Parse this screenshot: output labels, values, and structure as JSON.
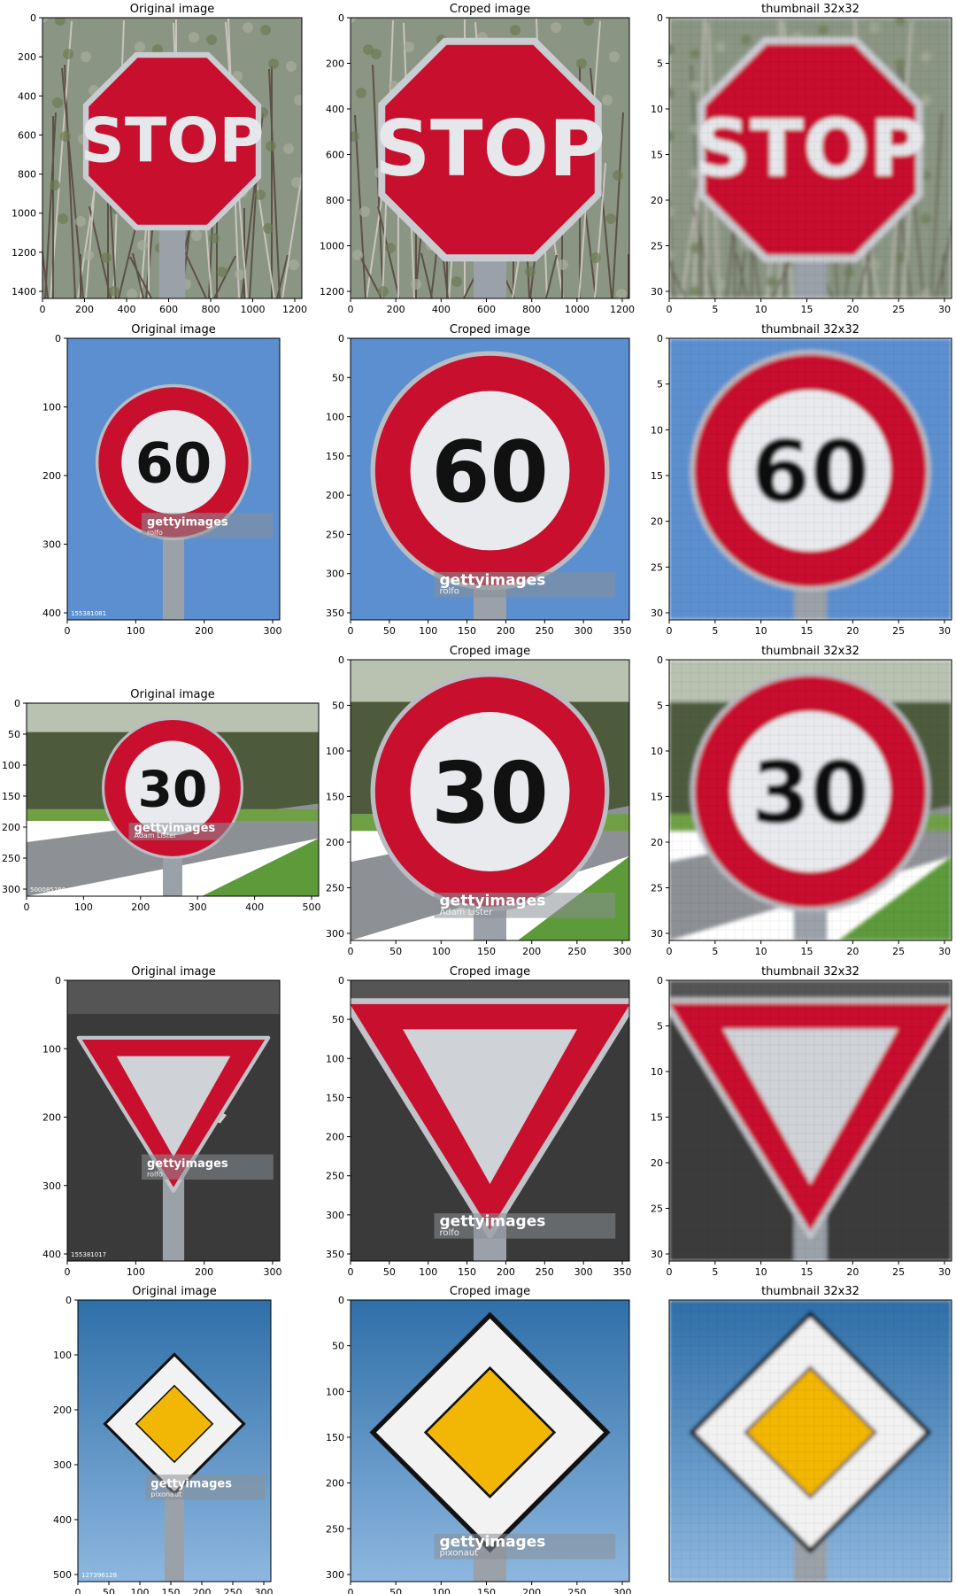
{
  "titles": {
    "original": "Original image",
    "cropped": "Croped image",
    "thumb": "thumbnail 32x32"
  },
  "rows": [
    {
      "sign": "stop",
      "sign_text": "STOP",
      "bg": "trees",
      "original": {
        "xticks": [
          "0",
          "200",
          "400",
          "600",
          "800",
          "1000",
          "1200"
        ],
        "yticks": [
          "0",
          "200",
          "400",
          "600",
          "800",
          "1000",
          "1200",
          "1400"
        ],
        "watermark": false
      },
      "cropped": {
        "xticks": [
          "0",
          "200",
          "400",
          "600",
          "800",
          "1000",
          "1200"
        ],
        "yticks": [
          "0",
          "200",
          "400",
          "600",
          "800",
          "1000",
          "1200"
        ],
        "watermark": false
      },
      "thumb": {
        "xticks": [
          "0",
          "5",
          "10",
          "15",
          "20",
          "25",
          "30"
        ],
        "yticks": [
          "0",
          "5",
          "10",
          "15",
          "20",
          "25",
          "30"
        ]
      }
    },
    {
      "sign": "speed",
      "sign_text": "60",
      "bg": "sky",
      "original": {
        "xticks": [
          "0",
          "100",
          "200",
          "300"
        ],
        "yticks": [
          "0",
          "100",
          "200",
          "300",
          "400"
        ],
        "watermark": true,
        "credit": "rolfo",
        "id": "155381081"
      },
      "cropped": {
        "xticks": [
          "0",
          "50",
          "100",
          "150",
          "200",
          "250",
          "300",
          "350"
        ],
        "yticks": [
          "0",
          "50",
          "100",
          "150",
          "200",
          "250",
          "300",
          "350"
        ],
        "watermark": true,
        "credit": "rolfo"
      },
      "thumb": {
        "xticks": [
          "0",
          "5",
          "10",
          "15",
          "20",
          "25",
          "30"
        ],
        "yticks": [
          "0",
          "5",
          "10",
          "15",
          "20",
          "25",
          "30"
        ]
      }
    },
    {
      "sign": "speed",
      "sign_text": "30",
      "bg": "road",
      "original": {
        "xticks": [
          "0",
          "100",
          "200",
          "300",
          "400",
          "500"
        ],
        "yticks": [
          "0",
          "50",
          "100",
          "150",
          "200",
          "250",
          "300"
        ],
        "watermark": true,
        "credit": "Adam Lister",
        "id": "500085280"
      },
      "cropped": {
        "xticks": [
          "0",
          "50",
          "100",
          "150",
          "200",
          "250",
          "300"
        ],
        "yticks": [
          "0",
          "50",
          "100",
          "150",
          "200",
          "250",
          "300"
        ],
        "watermark": true,
        "credit": "Adam Lister"
      },
      "thumb": {
        "xticks": [
          "0",
          "5",
          "10",
          "15",
          "20",
          "25",
          "30"
        ],
        "yticks": [
          "0",
          "5",
          "10",
          "15",
          "20",
          "25",
          "30"
        ]
      }
    },
    {
      "sign": "yield",
      "sign_text": "",
      "bg": "asphalt",
      "original": {
        "xticks": [
          "0",
          "100",
          "200",
          "300"
        ],
        "yticks": [
          "0",
          "100",
          "200",
          "300",
          "400"
        ],
        "watermark": true,
        "credit": "rolfo",
        "id": "155381017"
      },
      "cropped": {
        "xticks": [
          "0",
          "50",
          "100",
          "150",
          "200",
          "250",
          "300",
          "350"
        ],
        "yticks": [
          "0",
          "50",
          "100",
          "150",
          "200",
          "250",
          "300",
          "350"
        ],
        "watermark": true,
        "credit": "rolfo"
      },
      "thumb": {
        "xticks": [
          "0",
          "5",
          "10",
          "15",
          "20",
          "25",
          "30"
        ],
        "yticks": [
          "0",
          "5",
          "10",
          "15",
          "20",
          "25",
          "30"
        ]
      }
    },
    {
      "sign": "priority",
      "sign_text": "",
      "bg": "bluesky",
      "original": {
        "xticks": [
          "0",
          "50",
          "100",
          "150",
          "200",
          "250",
          "300"
        ],
        "yticks": [
          "0",
          "100",
          "200",
          "300",
          "400",
          "500"
        ],
        "watermark": true,
        "credit": "pixonaut",
        "id": "127396128"
      },
      "cropped": {
        "xticks": [
          "0",
          "50",
          "100",
          "150",
          "200",
          "250",
          "300"
        ],
        "yticks": [
          "0",
          "50",
          "100",
          "150",
          "200",
          "250",
          "300"
        ],
        "watermark": true,
        "credit": "pixonaut"
      },
      "thumb": {
        "xticks": [],
        "yticks": []
      }
    }
  ],
  "watermark_brand": "gettyimages",
  "colors": {
    "sign_red": "#c8102e",
    "sign_white": "#e8eaee",
    "sign_yellow": "#f2b705",
    "sky": "#5b8fd0",
    "axis": "#000000"
  }
}
